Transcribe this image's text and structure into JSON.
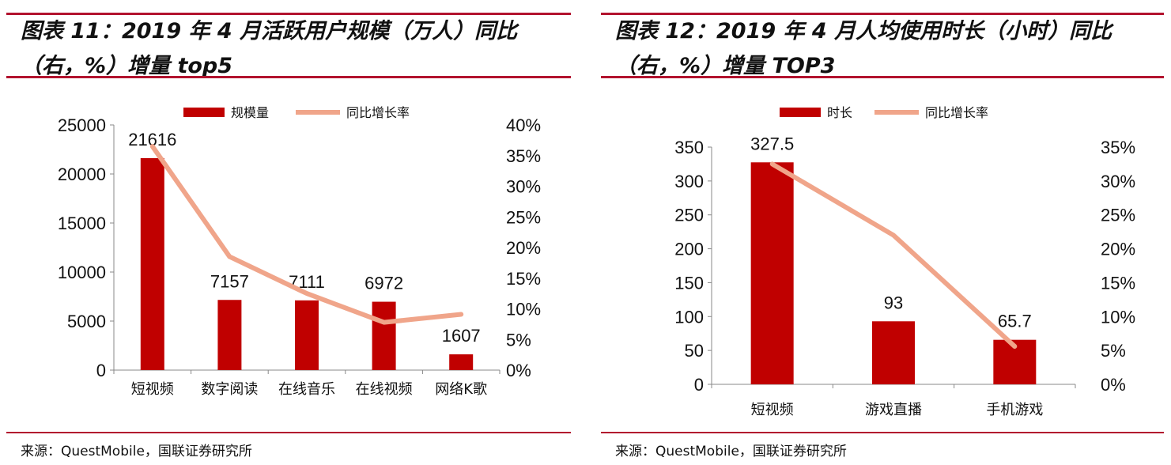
{
  "chart_data": [
    {
      "type": "bar",
      "title": "图表 11：2019 年 4 月活跃用户规模（万人）同比（右，%）增量 top5",
      "source": "来源：QuestMobile，国联证券研究所",
      "categories": [
        "短视频",
        "数字阅读",
        "在线音乐",
        "在线视频",
        "网络K歌"
      ],
      "series": [
        {
          "name": "规模量",
          "kind": "bar",
          "axis": "left",
          "color": "#c00000",
          "values": [
            21616,
            7157,
            7111,
            6972,
            1607
          ]
        },
        {
          "name": "同比增长率",
          "kind": "line",
          "axis": "right",
          "color": "#f0a58a",
          "values": [
            36.5,
            18.5,
            12.5,
            7.8,
            9.1
          ]
        }
      ],
      "data_labels": [
        "21616",
        "7157",
        "7111",
        "6972",
        "1607"
      ],
      "y_left": {
        "min": 0,
        "max": 25000,
        "ticks": [
          "0",
          "5000",
          "10000",
          "15000",
          "20000",
          "25000"
        ]
      },
      "y_right": {
        "min": 0,
        "max": 40,
        "ticks": [
          "0%",
          "5%",
          "10%",
          "15%",
          "20%",
          "25%",
          "30%",
          "35%",
          "40%"
        ]
      },
      "legend": "top-center",
      "grid": false
    },
    {
      "type": "bar",
      "title": "图表 12：2019 年 4 月人均使用时长（小时）同比（右，%）增量 TOP3",
      "source": "来源：QuestMobile，国联证券研究所",
      "categories": [
        "短视频",
        "游戏直播",
        "手机游戏"
      ],
      "series": [
        {
          "name": "时长",
          "kind": "bar",
          "axis": "left",
          "color": "#c00000",
          "values": [
            327.5,
            93,
            65.7
          ]
        },
        {
          "name": "同比增长率",
          "kind": "line",
          "axis": "right",
          "color": "#f0a58a",
          "values": [
            32.5,
            22,
            5.6
          ]
        }
      ],
      "data_labels": [
        "327.5",
        "93",
        "65.7"
      ],
      "y_left": {
        "min": 0,
        "max": 350,
        "ticks": [
          "0",
          "50",
          "100",
          "150",
          "200",
          "250",
          "300",
          "350"
        ]
      },
      "y_right": {
        "min": 0,
        "max": 35,
        "ticks": [
          "0%",
          "5%",
          "10%",
          "15%",
          "20%",
          "25%",
          "30%",
          "35%"
        ]
      },
      "legend": "top-center",
      "grid": false
    }
  ]
}
